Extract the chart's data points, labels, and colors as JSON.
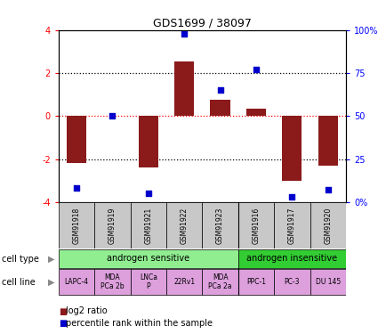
{
  "title": "GDS1699 / 38097",
  "samples": [
    "GSM91918",
    "GSM91919",
    "GSM91921",
    "GSM91922",
    "GSM91923",
    "GSM91916",
    "GSM91917",
    "GSM91920"
  ],
  "log2_ratio": [
    -2.2,
    0.0,
    -2.4,
    2.55,
    0.75,
    0.35,
    -3.0,
    -2.3
  ],
  "percentile_rank": [
    8,
    50,
    5,
    98,
    65,
    77,
    3,
    7
  ],
  "bar_color": "#8B1A1A",
  "dot_color": "#0000CC",
  "ylim": [
    -4,
    4
  ],
  "cell_type_groups": [
    {
      "label": "androgen sensitive",
      "start": 0,
      "end": 4,
      "color": "#90EE90"
    },
    {
      "label": "androgen insensitive",
      "start": 5,
      "end": 7,
      "color": "#32CD32"
    }
  ],
  "cell_lines": [
    {
      "label": "LAPC-4",
      "col": 0
    },
    {
      "label": "MDA\nPCa 2b",
      "col": 1
    },
    {
      "label": "LNCa\nP",
      "col": 2
    },
    {
      "label": "22Rv1",
      "col": 3
    },
    {
      "label": "MDA\nPCa 2a",
      "col": 4
    },
    {
      "label": "PPC-1",
      "col": 5
    },
    {
      "label": "PC-3",
      "col": 6
    },
    {
      "label": "DU 145",
      "col": 7
    }
  ],
  "cell_line_color": "#DDA0DD",
  "sample_box_color": "#C8C8C8",
  "left_label_cell_type": "cell type",
  "left_label_cell_line": "cell line",
  "legend_log2": "log2 ratio",
  "legend_percentile": "percentile rank within the sample"
}
